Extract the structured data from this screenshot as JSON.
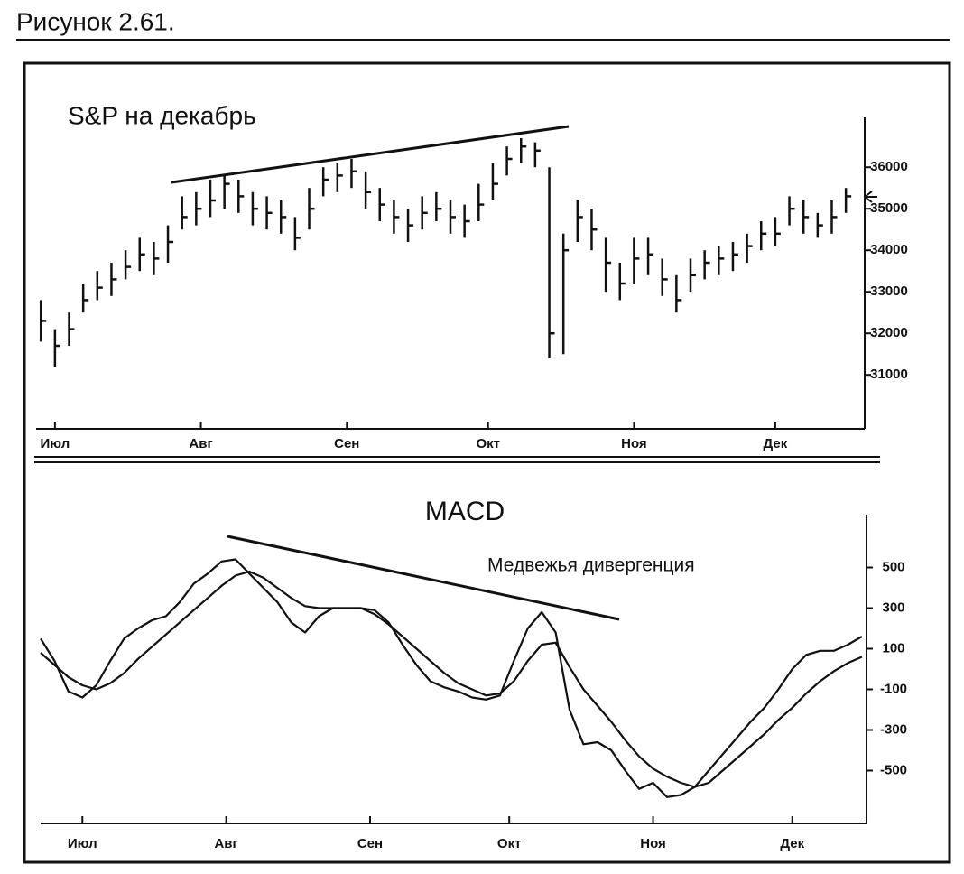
{
  "caption": "Рисунок 2.61.",
  "chart_data": [
    {
      "type": "ohlc",
      "title": "S&P на декабрь",
      "x": [
        -3,
        0,
        3,
        6,
        9,
        12,
        15,
        18,
        21,
        24,
        27,
        30,
        33,
        36,
        39,
        42,
        45,
        48,
        51,
        54,
        57,
        60,
        63,
        66,
        69,
        72,
        75,
        78,
        81,
        84,
        87,
        90,
        93,
        96,
        99,
        102,
        105,
        108,
        111,
        114,
        117,
        120,
        123,
        126,
        129,
        132,
        135,
        138,
        141,
        144,
        147,
        150,
        153,
        156,
        159,
        162,
        165,
        168
      ],
      "high": [
        32800,
        32100,
        32500,
        33200,
        33500,
        33700,
        34000,
        34300,
        34200,
        34600,
        35300,
        35400,
        35700,
        35800,
        35700,
        35400,
        35300,
        35200,
        34800,
        35500,
        36000,
        36100,
        36200,
        35900,
        35500,
        35200,
        35000,
        35300,
        35400,
        35200,
        35100,
        35600,
        36100,
        36500,
        36700,
        36600,
        36000,
        34400,
        35200,
        35000,
        34300,
        33700,
        34300,
        34300,
        33800,
        33400,
        33800,
        34000,
        34100,
        34200,
        34400,
        34700,
        34800,
        35300,
        35200,
        34900,
        35200,
        35500
      ],
      "low": [
        31800,
        31200,
        31700,
        32500,
        32800,
        32900,
        33300,
        33500,
        33400,
        33700,
        34500,
        34600,
        34800,
        35000,
        34900,
        34600,
        34500,
        34400,
        34000,
        34500,
        35300,
        35400,
        35500,
        35000,
        34700,
        34400,
        34200,
        34500,
        34700,
        34400,
        34300,
        34700,
        35200,
        35800,
        36100,
        36000,
        31400,
        31500,
        34200,
        34000,
        33000,
        32800,
        33200,
        33400,
        32900,
        32500,
        33000,
        33300,
        33400,
        33500,
        33700,
        34000,
        34100,
        34600,
        34400,
        34300,
        34400,
        34900
      ],
      "close": [
        32300,
        31700,
        32100,
        32800,
        33100,
        33300,
        33600,
        33900,
        33800,
        34200,
        34800,
        35000,
        35200,
        35600,
        35300,
        35000,
        34900,
        34800,
        34300,
        35000,
        35700,
        35800,
        35900,
        35400,
        35100,
        34800,
        34600,
        34900,
        35000,
        34800,
        34700,
        35100,
        35600,
        36200,
        36500,
        36400,
        32000,
        34000,
        34800,
        34500,
        33700,
        33200,
        33800,
        33900,
        33300,
        32800,
        33400,
        33700,
        33800,
        33900,
        34100,
        34400,
        34400,
        35000,
        34800,
        34600,
        34800,
        35300
      ],
      "color": "#111111",
      "xlim": [
        -4,
        172
      ],
      "xticks": [
        {
          "value": 0,
          "label": "Июл"
        },
        {
          "value": 31,
          "label": "Авг"
        },
        {
          "value": 62,
          "label": "Сен"
        },
        {
          "value": 92,
          "label": "Окт"
        },
        {
          "value": 123,
          "label": "Ноя"
        },
        {
          "value": 153,
          "label": "Дек"
        }
      ],
      "ylim": [
        29700,
        37200
      ],
      "yticks": [
        31000,
        32000,
        33000,
        34000,
        35000,
        36000
      ]
    },
    {
      "type": "line",
      "title": "MACD",
      "annotation": "Медвежья дивергенция",
      "x": [
        -9,
        -6,
        -3,
        0,
        3,
        6,
        9,
        12,
        15,
        18,
        21,
        24,
        27,
        30,
        33,
        36,
        39,
        42,
        45,
        48,
        51,
        54,
        57,
        60,
        63,
        66,
        69,
        72,
        75,
        78,
        81,
        84,
        87,
        90,
        93,
        96,
        99,
        102,
        105,
        108,
        111,
        114,
        117,
        120,
        123,
        126,
        129,
        132,
        135,
        138,
        141,
        144,
        147,
        150,
        153,
        156,
        159,
        162,
        165,
        168
      ],
      "series": [
        {
          "color": "#111111",
          "values": [
            150,
            40,
            -110,
            -140,
            -80,
            40,
            150,
            200,
            240,
            260,
            330,
            420,
            470,
            530,
            540,
            470,
            400,
            330,
            230,
            180,
            260,
            300,
            300,
            300,
            290,
            230,
            120,
            20,
            -60,
            -90,
            -110,
            -140,
            -150,
            -130,
            40,
            200,
            280,
            180,
            -200,
            -370,
            -360,
            -400,
            -500,
            -590,
            -560,
            -630,
            -620,
            -580,
            -500,
            -420,
            -340,
            -260,
            -190,
            -100,
            0,
            70,
            90,
            90,
            120,
            160
          ]
        },
        {
          "color": "#111111",
          "values": [
            80,
            20,
            -40,
            -80,
            -100,
            -70,
            -20,
            50,
            110,
            170,
            230,
            290,
            350,
            410,
            460,
            480,
            450,
            400,
            350,
            310,
            300,
            300,
            300,
            300,
            270,
            220,
            160,
            100,
            40,
            -20,
            -70,
            -100,
            -130,
            -120,
            -60,
            40,
            120,
            130,
            10,
            -100,
            -180,
            -260,
            -350,
            -430,
            -490,
            -530,
            -560,
            -580,
            -560,
            -500,
            -440,
            -380,
            -320,
            -250,
            -190,
            -120,
            -60,
            -10,
            30,
            60
          ]
        }
      ],
      "xlim": [
        -9,
        169
      ],
      "xticks": [
        {
          "value": 0,
          "label": "Июл"
        },
        {
          "value": 31,
          "label": "Авг"
        },
        {
          "value": 62,
          "label": "Сен"
        },
        {
          "value": 92,
          "label": "Окт"
        },
        {
          "value": 123,
          "label": "Ноя"
        },
        {
          "value": 153,
          "label": "Дек"
        }
      ],
      "ylim": [
        -760,
        760
      ],
      "yticks": [
        -500,
        -300,
        -100,
        100,
        300,
        500
      ]
    }
  ]
}
